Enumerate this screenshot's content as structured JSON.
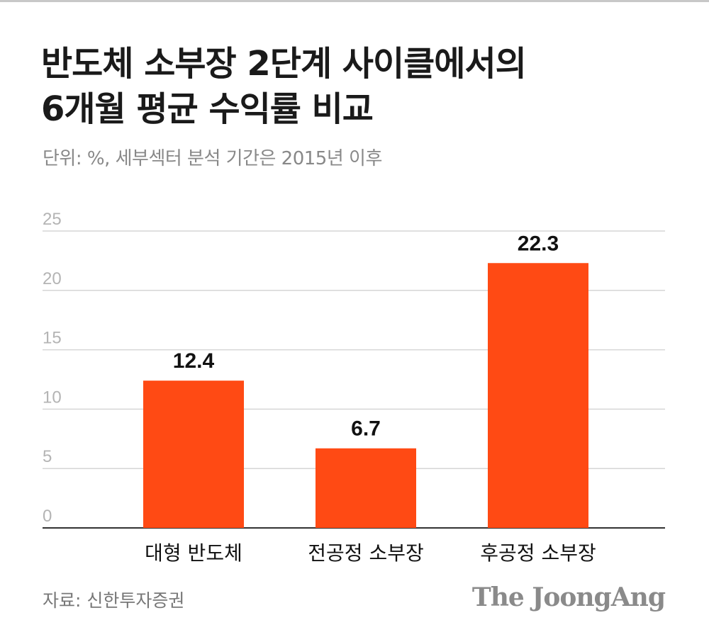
{
  "title_lines": [
    "반도체 소부장 2단계 사이클에서의",
    "6개월 평균 수익률 비교"
  ],
  "subtitle": "단위: %, 세부섹터 분석 기간은 2015년 이후",
  "source": "자료: 신한투자증권",
  "logo_text": "The JoongAng",
  "colors": {
    "bar": "#ff4a14",
    "grid": "#d6d6d6",
    "axis": "#333333"
  },
  "chart_data": {
    "type": "bar",
    "categories": [
      "대형 반도체",
      "전공정 소부장",
      "후공정 소부장"
    ],
    "values": [
      12.4,
      6.7,
      22.3
    ],
    "value_labels": [
      "12.4",
      "6.7",
      "22.3"
    ],
    "yticks": [
      "0",
      "5",
      "10",
      "15",
      "20",
      "25"
    ],
    "ylim": [
      0,
      25
    ],
    "title": "반도체 소부장 2단계 사이클에서의 6개월 평균 수익률 비교",
    "xlabel": "",
    "ylabel": "",
    "unit": "%",
    "grid": true
  }
}
